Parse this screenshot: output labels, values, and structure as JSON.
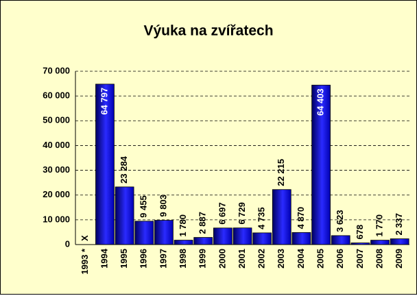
{
  "chart_data": {
    "type": "bar",
    "title": "Výuka na zvířatech",
    "categories": [
      "1993 *",
      "1994",
      "1995",
      "1996",
      "1997",
      "1998",
      "1999",
      "2000",
      "2001",
      "2002",
      "2003",
      "2004",
      "2005",
      "2006",
      "2007",
      "2008",
      "2009"
    ],
    "values": [
      null,
      64797,
      23284,
      9455,
      9803,
      1780,
      2887,
      6697,
      6729,
      4735,
      22215,
      4870,
      64403,
      3623,
      678,
      1770,
      2337
    ],
    "value_labels": [
      "X",
      "64 797",
      "23 284",
      "9 455",
      "9 803",
      "1 780",
      "2 887",
      "6 697",
      "6 729",
      "4 735",
      "22 215",
      "4 870",
      "64 403",
      "3 623",
      "678",
      "1 770",
      "2 337"
    ],
    "color": "#0000cc",
    "ylim": [
      0,
      70000
    ],
    "yticks": [
      0,
      {
        "value": 10000,
        "label": "10 000"
      },
      {
        "value": 20000,
        "label": "20 000"
      },
      {
        "value": 30000,
        "label": "30 000"
      },
      {
        "value": 40000,
        "label": "40 000"
      },
      {
        "value": 50000,
        "label": "50 000"
      },
      {
        "value": 60000,
        "label": "60 000"
      },
      {
        "value": 70000,
        "label": "70 000"
      }
    ],
    "grid": true
  }
}
